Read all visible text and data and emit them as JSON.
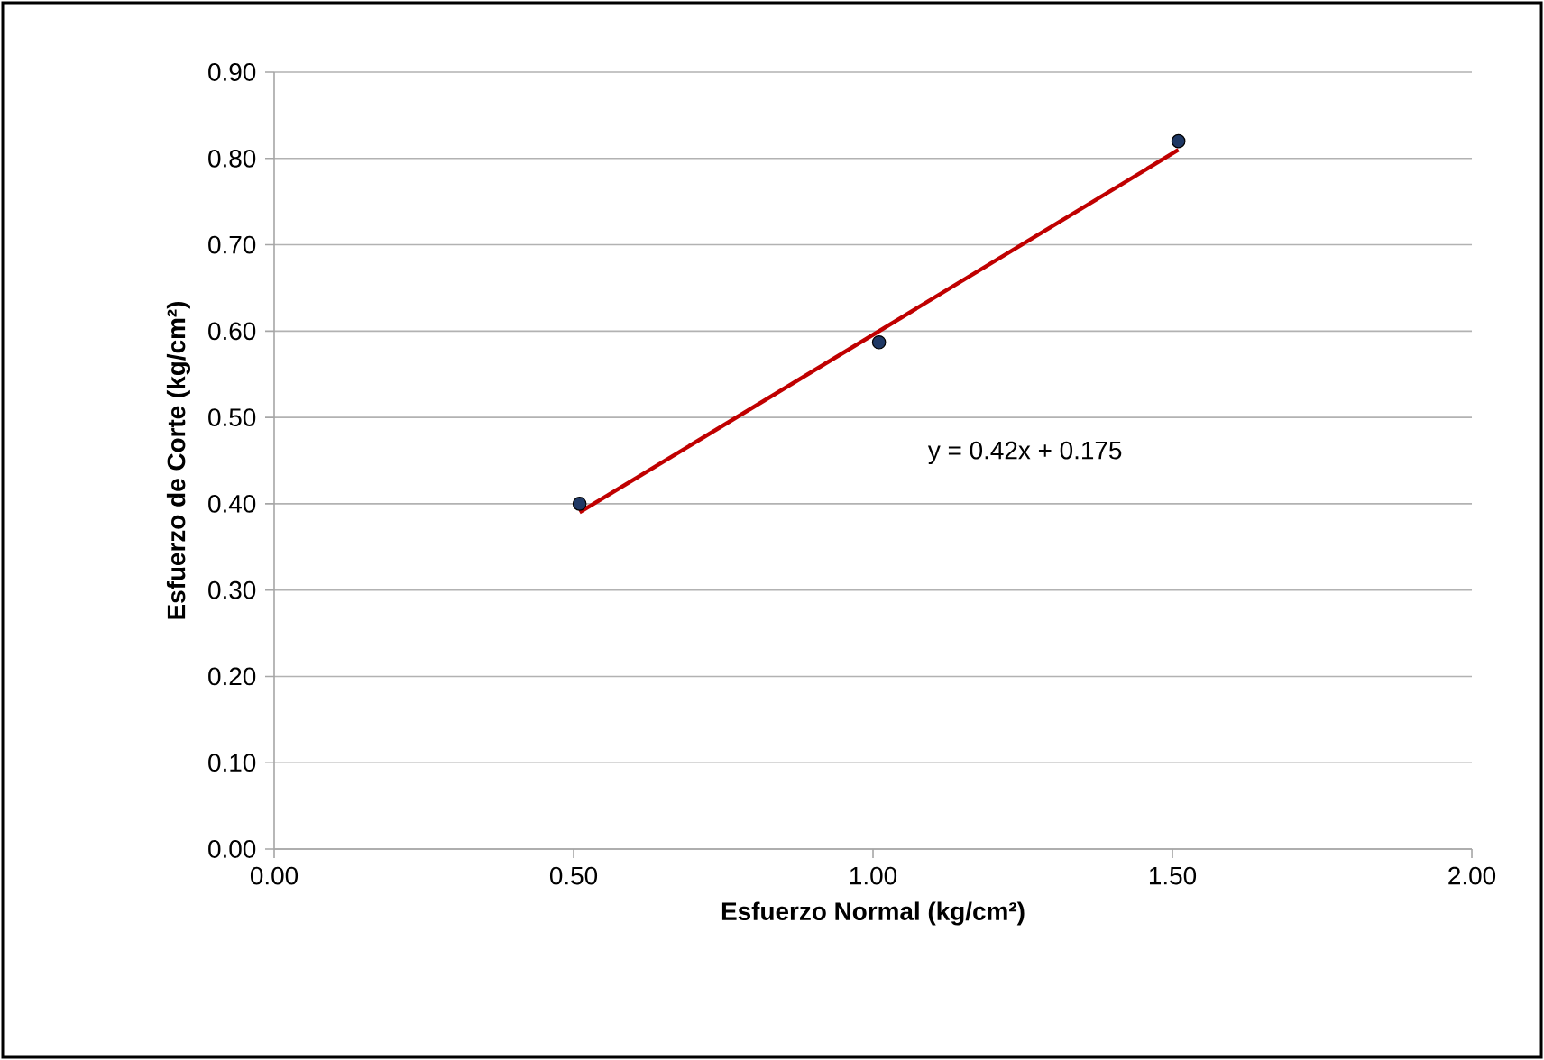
{
  "chart_data": {
    "type": "scatter",
    "xlabel": "Esfuerzo Normal (kg/cm²)",
    "ylabel": "Esfuerzo de Corte (kg/cm²)",
    "series": [
      {
        "x": [
          0.51,
          1.01,
          1.51
        ],
        "values": [
          0.4,
          0.587,
          0.82
        ],
        "color": "#1f3864",
        "marker": "circle"
      },
      {
        "type": "line",
        "x": [
          0.51,
          1.51
        ],
        "values": [
          0.39,
          0.81
        ],
        "color": "#c00000",
        "marker": "none",
        "line_style": "solid"
      }
    ],
    "annotations": [
      "y = 0.42x + 0.175"
    ],
    "xlim": [
      0,
      2
    ],
    "ylim": [
      0,
      0.9
    ],
    "xticks": [
      {
        "value": 0,
        "label": "0.00"
      },
      {
        "value": 0.5,
        "label": "0.50"
      },
      {
        "value": 1,
        "label": "1.00"
      },
      {
        "value": 1.5,
        "label": "1.50"
      },
      {
        "value": 2,
        "label": "2.00"
      }
    ],
    "yticks": [
      {
        "value": 0,
        "label": "0.00"
      },
      {
        "value": 0.1,
        "label": "0.10"
      },
      {
        "value": 0.2,
        "label": "0.20"
      },
      {
        "value": 0.3,
        "label": "0.30"
      },
      {
        "value": 0.4,
        "label": "0.40"
      },
      {
        "value": 0.5,
        "label": "0.50"
      },
      {
        "value": 0.6,
        "label": "0.60"
      },
      {
        "value": 0.7,
        "label": "0.70"
      },
      {
        "value": 0.8,
        "label": "0.80"
      },
      {
        "value": 0.9,
        "label": "0.90"
      }
    ],
    "grid": "y",
    "legend": false
  }
}
